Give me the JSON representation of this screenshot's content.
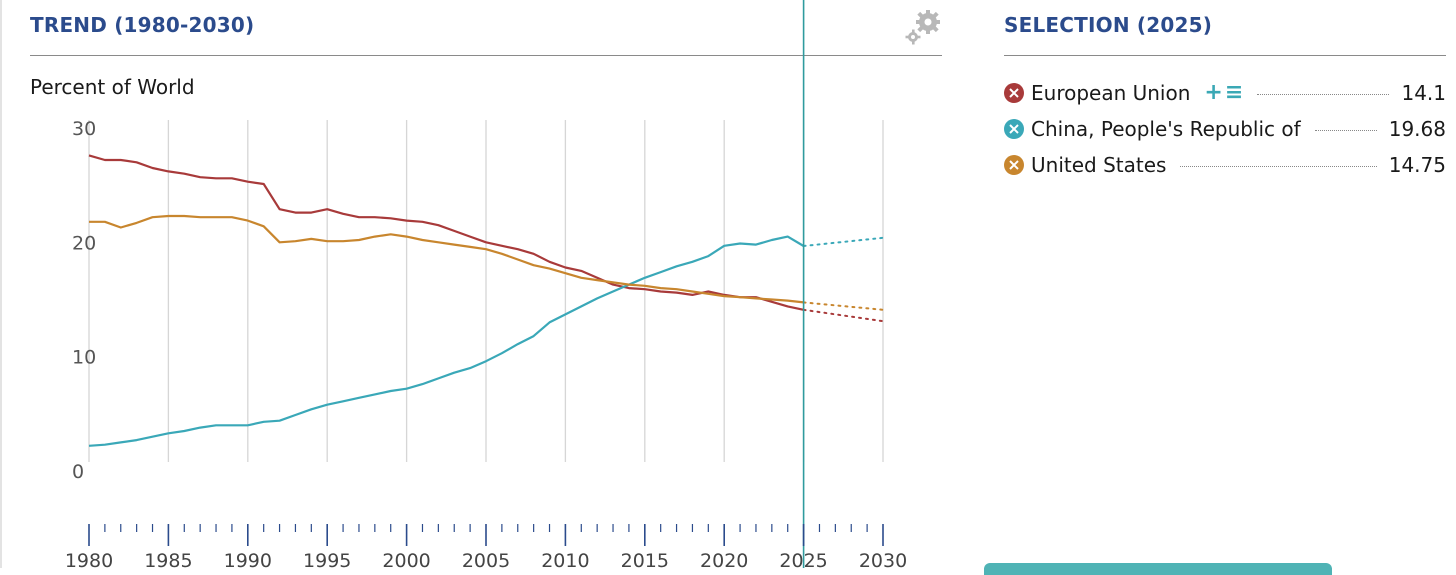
{
  "trend": {
    "title": "TREND (1980-2030)",
    "unit_label": "Percent of World",
    "settings_icon": "gear-icon"
  },
  "selection": {
    "title": "SELECTION (2025)",
    "add_icon": "plus-icon",
    "list_icon": "list-icon",
    "items": [
      {
        "name": "European Union",
        "value": "14.1",
        "color": "#a83a3a"
      },
      {
        "name": "China, People's Republic of",
        "value": "19.68",
        "color": "#3aa8b8"
      },
      {
        "name": "United States",
        "value": "14.75",
        "color": "#c8862e"
      }
    ]
  },
  "chart_data": {
    "type": "line",
    "title": "TREND (1980-2030)",
    "ylabel": "Percent of World",
    "xlim": [
      1980,
      2030
    ],
    "ylim": [
      0,
      30
    ],
    "yticks": [
      0,
      10,
      20,
      30
    ],
    "xticks": [
      1980,
      1985,
      1990,
      1995,
      2000,
      2005,
      2010,
      2015,
      2020,
      2025,
      2030
    ],
    "grid": true,
    "selected_year": 2025,
    "projection_from": 2025,
    "series": [
      {
        "name": "European Union",
        "color": "#a83a3a",
        "x": [
          1980,
          1981,
          1982,
          1983,
          1984,
          1985,
          1986,
          1987,
          1988,
          1989,
          1990,
          1991,
          1992,
          1993,
          1994,
          1995,
          1996,
          1997,
          1998,
          1999,
          2000,
          2001,
          2002,
          2003,
          2004,
          2005,
          2006,
          2007,
          2008,
          2009,
          2010,
          2011,
          2012,
          2013,
          2014,
          2015,
          2016,
          2017,
          2018,
          2019,
          2020,
          2021,
          2022,
          2023,
          2024,
          2025,
          2030
        ],
        "y": [
          27.6,
          27.2,
          27.2,
          27.0,
          26.5,
          26.2,
          26.0,
          25.7,
          25.6,
          25.6,
          25.3,
          25.1,
          22.9,
          22.6,
          22.6,
          22.9,
          22.5,
          22.2,
          22.2,
          22.1,
          21.9,
          21.8,
          21.5,
          21.0,
          20.5,
          20.0,
          19.7,
          19.4,
          19.0,
          18.3,
          17.8,
          17.5,
          16.9,
          16.3,
          16.0,
          15.9,
          15.7,
          15.6,
          15.4,
          15.7,
          15.4,
          15.2,
          15.2,
          14.8,
          14.4,
          14.1,
          13.1
        ]
      },
      {
        "name": "China, People's Republic of",
        "color": "#3aa8b8",
        "x": [
          1980,
          1981,
          1982,
          1983,
          1984,
          1985,
          1986,
          1987,
          1988,
          1989,
          1990,
          1991,
          1992,
          1993,
          1994,
          1995,
          1996,
          1997,
          1998,
          1999,
          2000,
          2001,
          2002,
          2003,
          2004,
          2005,
          2006,
          2007,
          2008,
          2009,
          2010,
          2011,
          2012,
          2013,
          2014,
          2015,
          2016,
          2017,
          2018,
          2019,
          2020,
          2021,
          2022,
          2023,
          2024,
          2025,
          2030
        ],
        "y": [
          2.2,
          2.3,
          2.5,
          2.7,
          3.0,
          3.3,
          3.5,
          3.8,
          4.0,
          4.0,
          4.0,
          4.3,
          4.4,
          4.9,
          5.4,
          5.8,
          6.1,
          6.4,
          6.7,
          7.0,
          7.2,
          7.6,
          8.1,
          8.6,
          9.0,
          9.6,
          10.3,
          11.1,
          11.8,
          13.0,
          13.7,
          14.4,
          15.1,
          15.7,
          16.3,
          16.9,
          17.4,
          17.9,
          18.3,
          18.8,
          19.7,
          19.9,
          19.8,
          20.2,
          20.5,
          19.68,
          20.4
        ]
      },
      {
        "name": "United States",
        "color": "#c8862e",
        "x": [
          1980,
          1981,
          1982,
          1983,
          1984,
          1985,
          1986,
          1987,
          1988,
          1989,
          1990,
          1991,
          1992,
          1993,
          1994,
          1995,
          1996,
          1997,
          1998,
          1999,
          2000,
          2001,
          2002,
          2003,
          2004,
          2005,
          2006,
          2007,
          2008,
          2009,
          2010,
          2011,
          2012,
          2013,
          2014,
          2015,
          2016,
          2017,
          2018,
          2019,
          2020,
          2021,
          2022,
          2023,
          2024,
          2025,
          2030
        ],
        "y": [
          21.8,
          21.8,
          21.3,
          21.7,
          22.2,
          22.3,
          22.3,
          22.2,
          22.2,
          22.2,
          21.9,
          21.4,
          20.0,
          20.1,
          20.3,
          20.1,
          20.1,
          20.2,
          20.5,
          20.7,
          20.5,
          20.2,
          20.0,
          19.8,
          19.6,
          19.4,
          19.0,
          18.5,
          18.0,
          17.7,
          17.3,
          16.9,
          16.7,
          16.5,
          16.3,
          16.2,
          16.0,
          15.9,
          15.7,
          15.5,
          15.3,
          15.2,
          15.1,
          15.0,
          14.9,
          14.75,
          14.1
        ]
      }
    ]
  }
}
